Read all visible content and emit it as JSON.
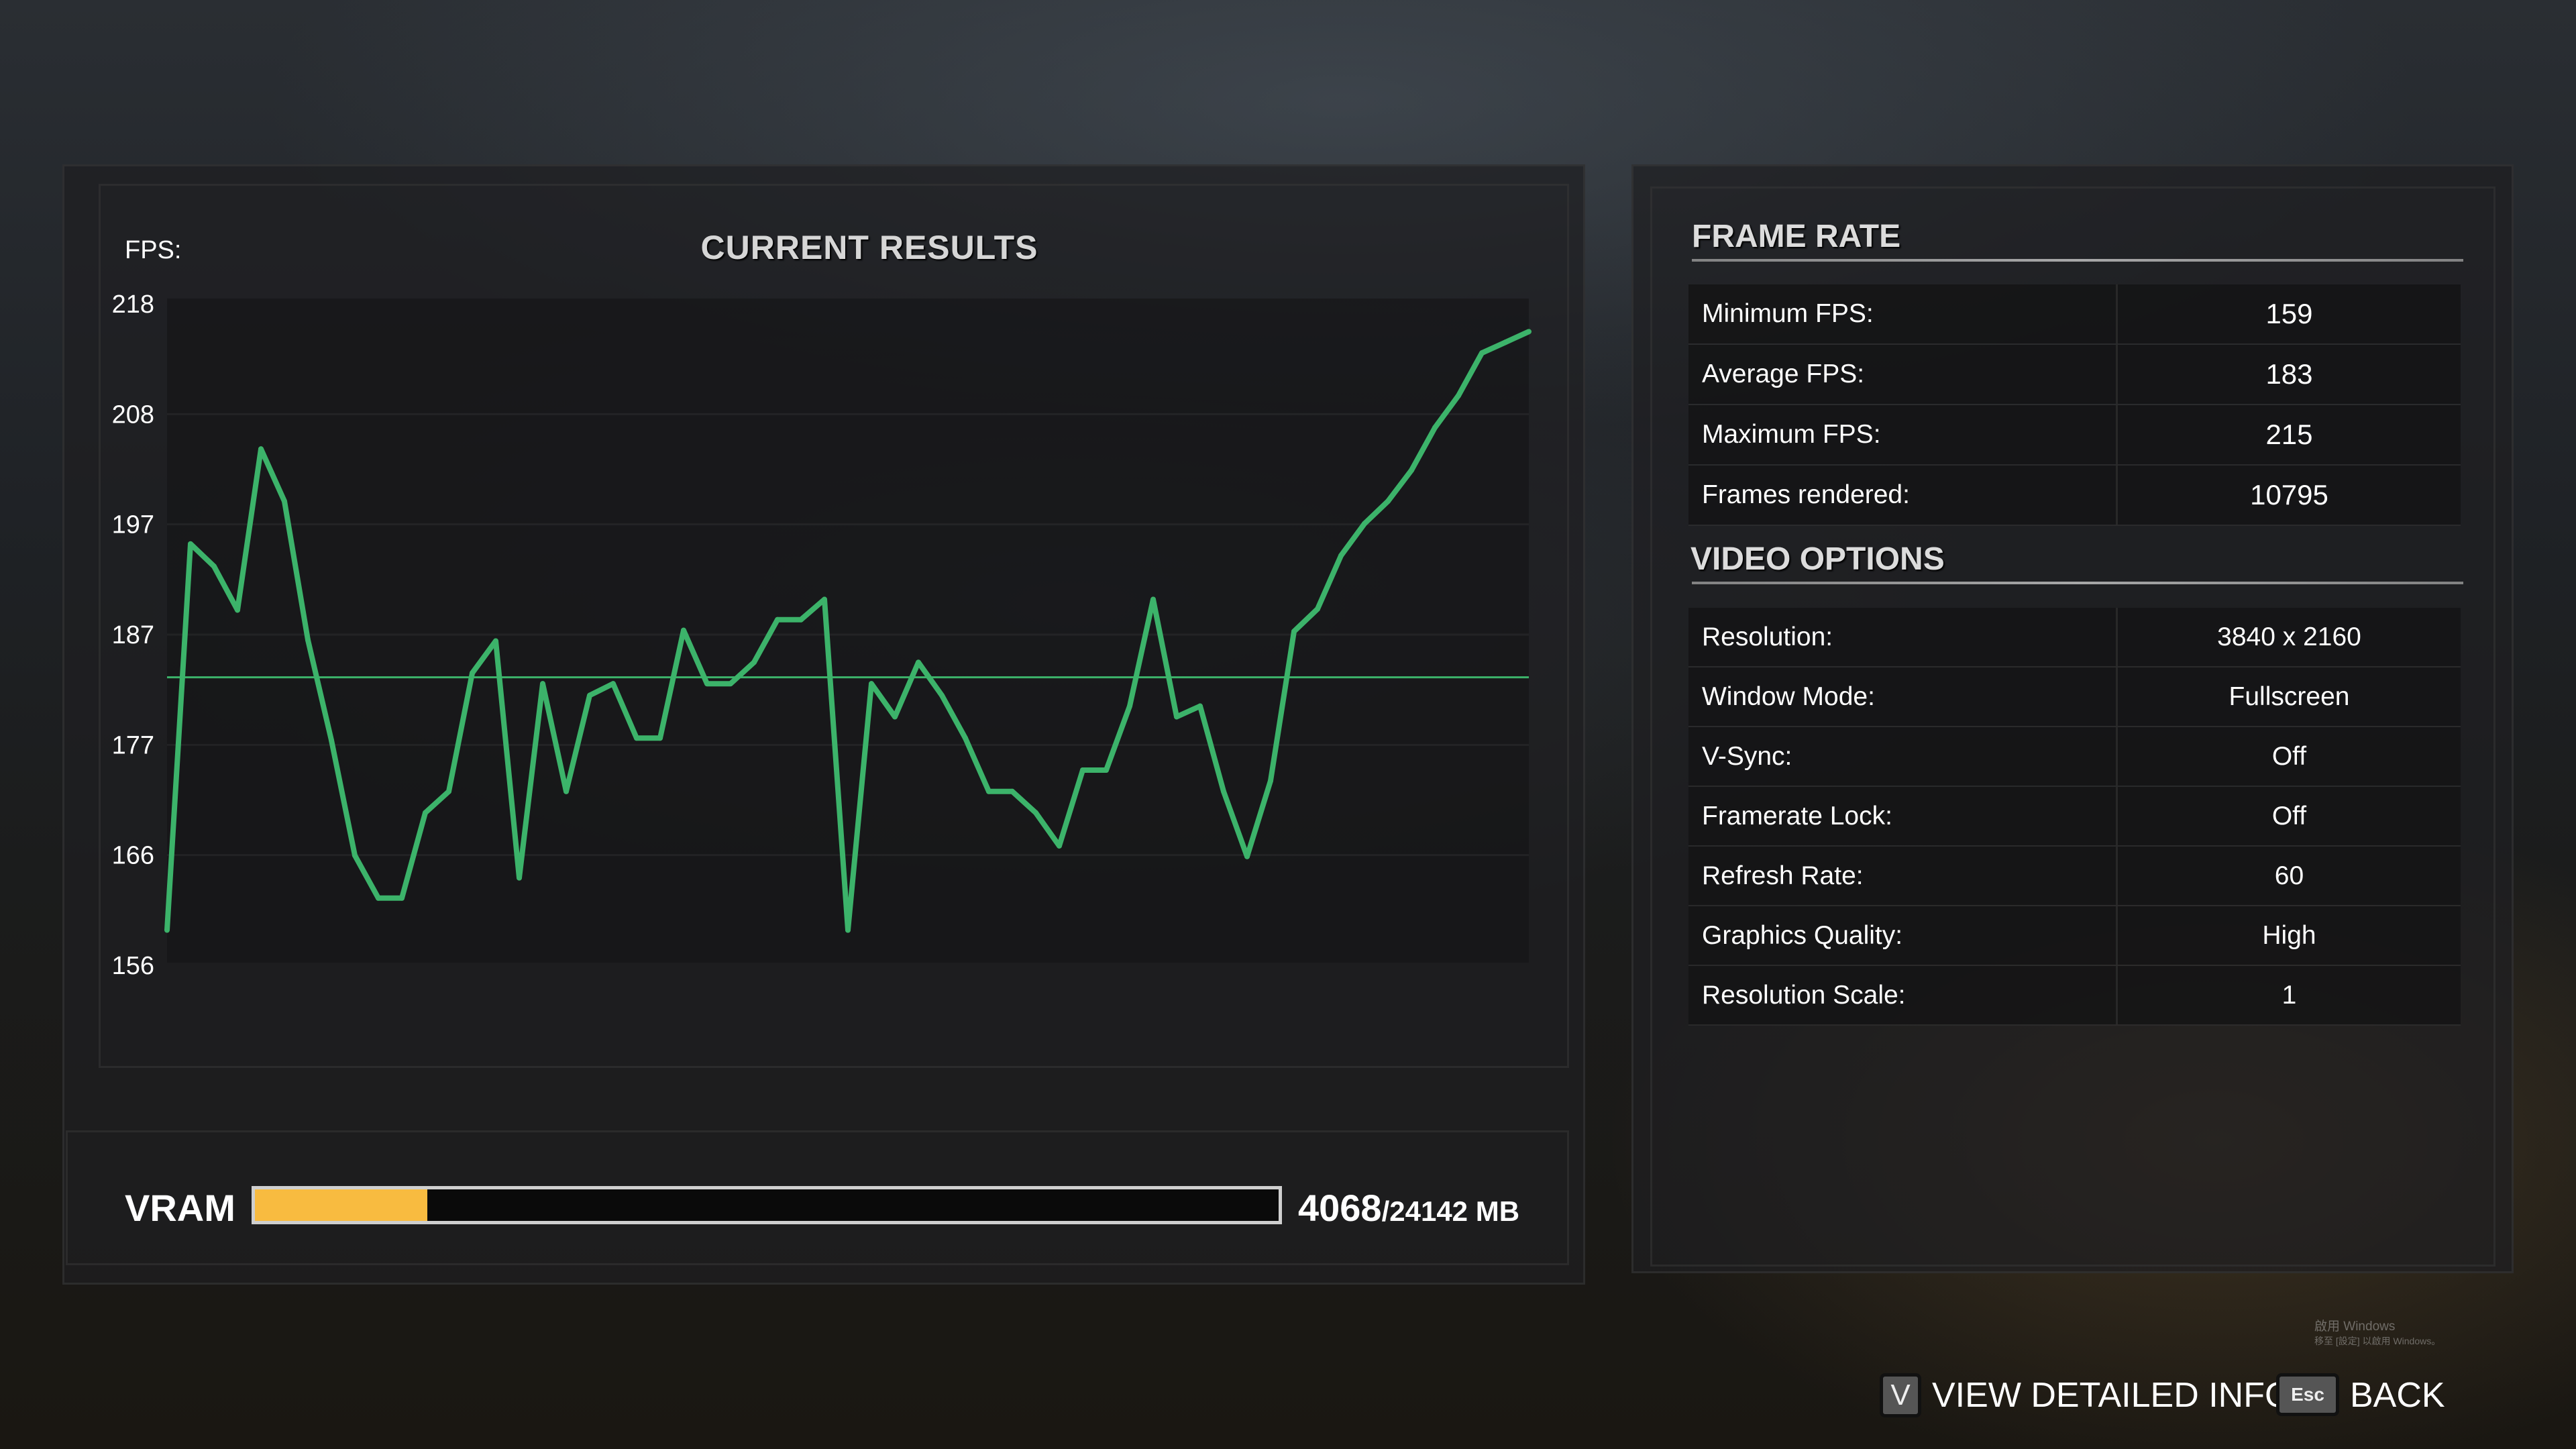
{
  "results": {
    "title": "CURRENT RESULTS",
    "fps_label": "FPS:"
  },
  "chart_data": {
    "type": "line",
    "title": "CURRENT RESULTS",
    "ylabel": "FPS:",
    "ylim": [
      156,
      218
    ],
    "yticks": [
      "218",
      "208",
      "197",
      "187",
      "177",
      "166",
      "156"
    ],
    "grid": true,
    "line_color": "#3cb36a",
    "average": 183,
    "series": [
      {
        "values": [
          159.3,
          195.5,
          193.4,
          189.3,
          204.4,
          199.5,
          186.5,
          177.1,
          166.3,
          162.3,
          162.3,
          170.3,
          172.3,
          183.4,
          186.4,
          164.2,
          182.4,
          172.3,
          181.3,
          182.4,
          177.3,
          177.3,
          187.4,
          182.4,
          182.4,
          184.4,
          188.4,
          188.4,
          190.3,
          159.3,
          182.4,
          179.3,
          184.4,
          181.3,
          177.3,
          172.3,
          172.3,
          170.3,
          167.2,
          174.3,
          174.3,
          180.3,
          190.3,
          179.3,
          180.3,
          172.3,
          166.2,
          173.3,
          187.3,
          189.4,
          194.4,
          197.4,
          199.5,
          202.4,
          206.4,
          209.4,
          213.4,
          214.4,
          215.4
        ]
      }
    ]
  },
  "vram": {
    "label": "VRAM",
    "used": "4068",
    "total": "/24142 MB",
    "used_fraction": 0.1685,
    "bar_color": "#f8bb40"
  },
  "frame_rate": {
    "heading": "FRAME RATE",
    "rows": [
      {
        "label": "Minimum FPS:",
        "value": "159"
      },
      {
        "label": "Average FPS:",
        "value": "183"
      },
      {
        "label": "Maximum FPS:",
        "value": "215"
      },
      {
        "label": "Frames rendered:",
        "value": "10795"
      }
    ]
  },
  "video_options": {
    "heading": "VIDEO OPTIONS",
    "rows": [
      {
        "label": "Resolution:",
        "value": "3840 x 2160"
      },
      {
        "label": "Window Mode:",
        "value": "Fullscreen"
      },
      {
        "label": "V-Sync:",
        "value": "Off"
      },
      {
        "label": "Framerate Lock:",
        "value": "Off"
      },
      {
        "label": "Refresh Rate:",
        "value": "60"
      },
      {
        "label": "Graphics Quality:",
        "value": "High"
      },
      {
        "label": "Resolution Scale:",
        "value": "1"
      }
    ]
  },
  "footer": {
    "detail_key": "V",
    "detail_label": "VIEW DETAILED INFO",
    "back_key": "Esc",
    "back_label": "BACK"
  },
  "watermark": {
    "line1": "啟用 Windows",
    "line2": "移至 [設定] 以啟用 Windows。"
  }
}
